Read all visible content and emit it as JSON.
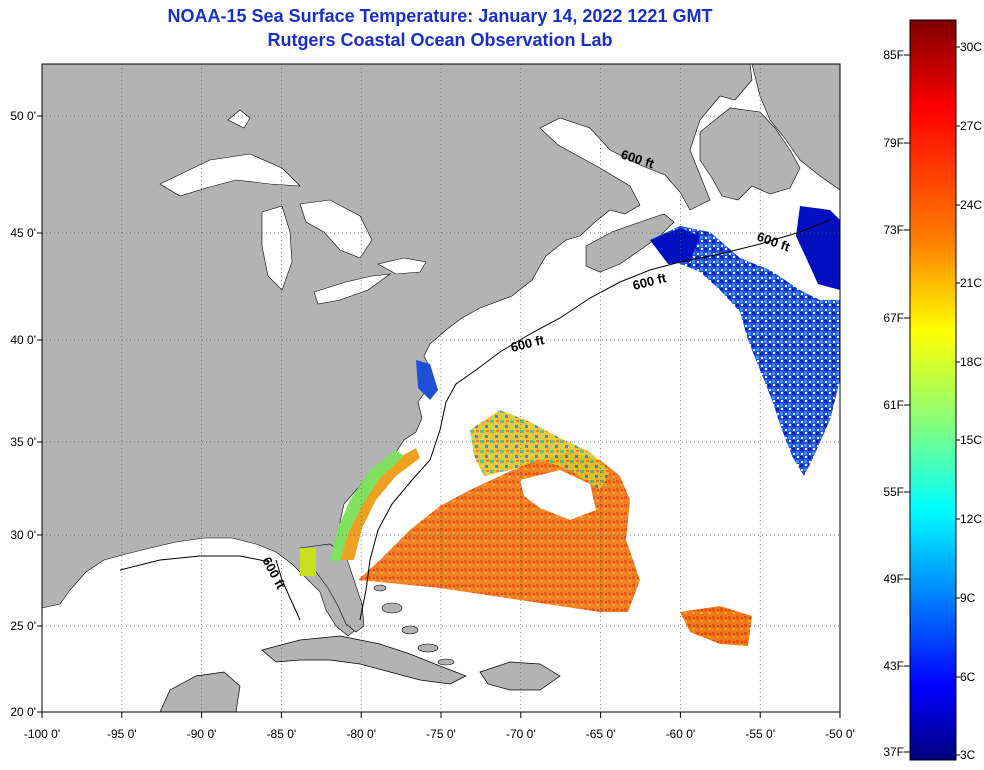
{
  "title": "NOAA-15 Sea Surface Temperature:  January 14, 2022 1221 GMT",
  "subtitle": "Rutgers Coastal Ocean Observation Lab",
  "lon_labels": [
    "-100 0'",
    "-95 0'",
    "-90 0'",
    "-85 0'",
    "-80 0'",
    "-75 0'",
    "-70 0'",
    "-65 0'",
    "-60 0'",
    "-55 0'",
    "-50 0'"
  ],
  "lon_values": [
    -100,
    -95,
    -90,
    -85,
    -80,
    -75,
    -70,
    -65,
    -60,
    -55,
    -50
  ],
  "lat_labels": [
    "50 0'",
    "45 0'",
    "40 0'",
    "35 0'",
    "30 0'",
    "25 0'",
    "20 0'"
  ],
  "lat_values": [
    50,
    45,
    40,
    35,
    30,
    25,
    20
  ],
  "contour_label": "600 ft",
  "colorbar": {
    "fahrenheit": [
      "85F",
      "79F",
      "73F",
      "67F",
      "61F",
      "55F",
      "49F",
      "43F",
      "37F"
    ],
    "celsius": [
      "30C",
      "27C",
      "24C",
      "21C",
      "18C",
      "15C",
      "12C",
      "9C",
      "6C",
      "3C"
    ],
    "stops": [
      "#7f0000",
      "#ff0000",
      "#ff8000",
      "#ffff00",
      "#80ff80",
      "#00ffff",
      "#0080ff",
      "#0000ff",
      "#00007f"
    ]
  },
  "colors": {
    "land": "#b3b3b3",
    "ocean": "#ffffff",
    "title": "#1a2fc4"
  }
}
